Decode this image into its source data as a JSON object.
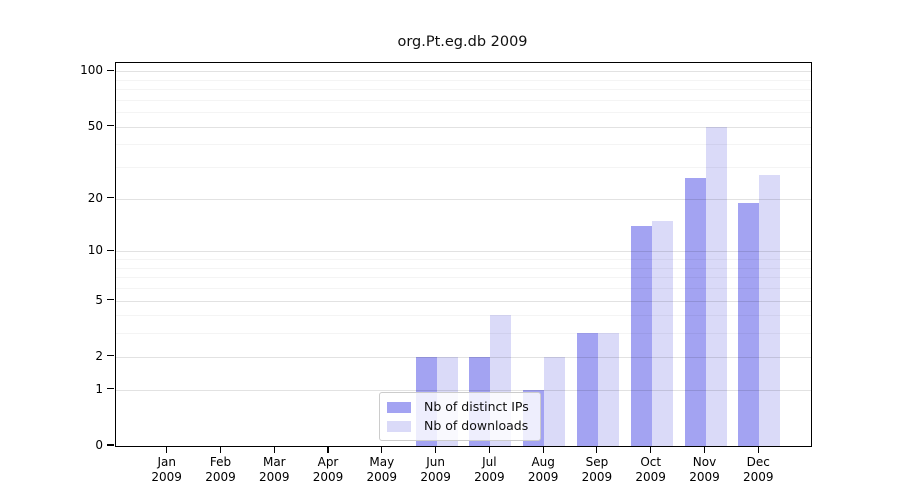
{
  "chart_data": {
    "type": "bar",
    "title": "org.Pt.eg.db 2009",
    "categories": [
      "Jan",
      "Feb",
      "Mar",
      "Apr",
      "May",
      "Jun",
      "Jul",
      "Aug",
      "Sep",
      "Oct",
      "Nov",
      "Dec"
    ],
    "x_year_label": "2009",
    "series": [
      {
        "name": "Nb of distinct IPs",
        "color": "#a3a3f2",
        "values": [
          0,
          0,
          0,
          0,
          0,
          2,
          2,
          1,
          3,
          14,
          26,
          19
        ]
      },
      {
        "name": "Nb of downloads",
        "color": "#dadaf8",
        "values": [
          0,
          0,
          0,
          0,
          0,
          2,
          4,
          2,
          3,
          15,
          50,
          27
        ]
      }
    ],
    "y_axis": {
      "scale": "log1p",
      "major_ticks": [
        0,
        1,
        2,
        5,
        10,
        20,
        50,
        100
      ],
      "minor_ticks": [
        3,
        4,
        6,
        7,
        8,
        9,
        30,
        40,
        60,
        70,
        80,
        90
      ],
      "axis_max": 110.7
    },
    "legend": {
      "position": "bottom-center"
    },
    "grid": "horizontal, minor and major, drawn over bars",
    "frame_color": "#000000",
    "background_color": "#ffffff"
  }
}
